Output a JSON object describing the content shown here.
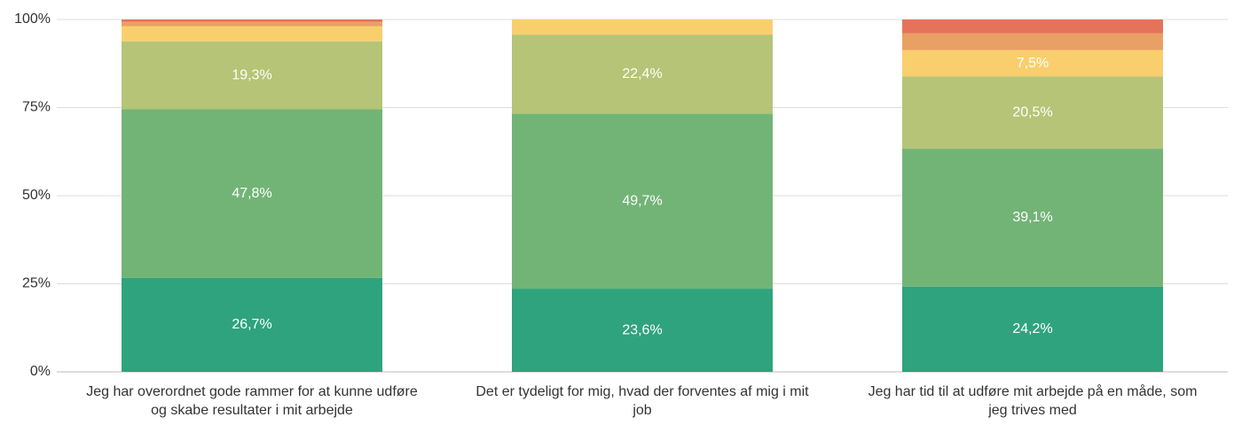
{
  "chart_data": {
    "type": "stacked_bar",
    "categories": [
      "Jeg har overordnet gode rammer for at kunne udføre og skabe resultater i mit arbejde",
      "Det er tydeligt for mig, hvad der forventes af mig i mit job",
      "Jeg har tid til at udføre mit arbejde på en måde, som jeg trives med"
    ],
    "series": [
      {
        "color": "#2ea37e",
        "values": [
          26.7,
          23.6,
          24.2
        ],
        "value_labels": [
          "26,7%",
          "23,6%",
          "24,2%"
        ]
      },
      {
        "color": "#72b476",
        "values": [
          47.8,
          49.7,
          39.1
        ],
        "value_labels": [
          "47,8%",
          "49,7%",
          "39,1%"
        ]
      },
      {
        "color": "#b5c476",
        "values": [
          19.3,
          22.4,
          20.5
        ],
        "value_labels": [
          "19,3%",
          "22,4%",
          "20,5%"
        ]
      },
      {
        "color": "#f9cf6e",
        "values": [
          4.3,
          4.3,
          7.5
        ],
        "value_labels": [
          null,
          null,
          "7,5%"
        ]
      },
      {
        "color": "#e9a064",
        "values": [
          1.2,
          0,
          4.8
        ]
      },
      {
        "color": "#e5735a",
        "values": [
          0.7,
          0,
          3.9
        ]
      }
    ],
    "ylim": [
      0,
      100
    ],
    "yticks": [
      {
        "value": 0,
        "label": "0%"
      },
      {
        "value": 25,
        "label": "25%"
      },
      {
        "value": 50,
        "label": "50%"
      },
      {
        "value": 75,
        "label": "75%"
      },
      {
        "value": 100,
        "label": "100%"
      }
    ],
    "grid": true
  }
}
